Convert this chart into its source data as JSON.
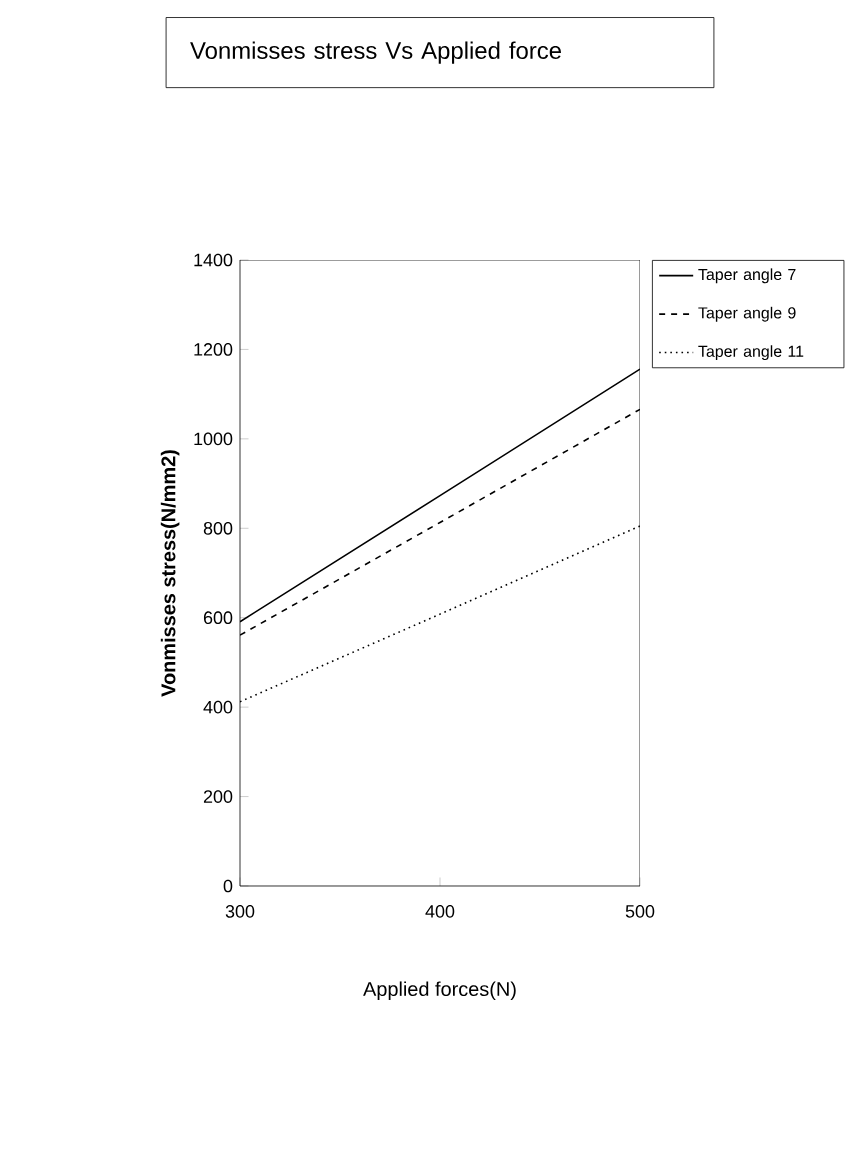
{
  "chart_data": {
    "type": "line",
    "title": "Vonmisses stress Vs Applied force",
    "xlabel": "Applied forces(N)",
    "ylabel": "Vonmisses stress(N/mm2)",
    "x": [
      300,
      400,
      500
    ],
    "series": [
      {
        "name": "Taper angle 7",
        "color": "#000000",
        "line_style": "solid",
        "values": [
          591,
          873,
          1156
        ]
      },
      {
        "name": "Taper angle 9",
        "color": "#000000",
        "line_style": "dashed",
        "values": [
          561,
          813,
          1066
        ]
      },
      {
        "name": "Taper angle 11",
        "color": "#000000",
        "line_style": "dotted",
        "values": [
          412,
          608,
          805
        ]
      }
    ],
    "xlim": [
      300,
      500
    ],
    "xticks": [
      300,
      400,
      500
    ],
    "ylim": [
      0,
      1400
    ],
    "yticks": [
      0,
      200,
      400,
      600,
      800,
      1000,
      1200,
      1400
    ],
    "grid": false,
    "legend": "right",
    "marker": "none"
  }
}
